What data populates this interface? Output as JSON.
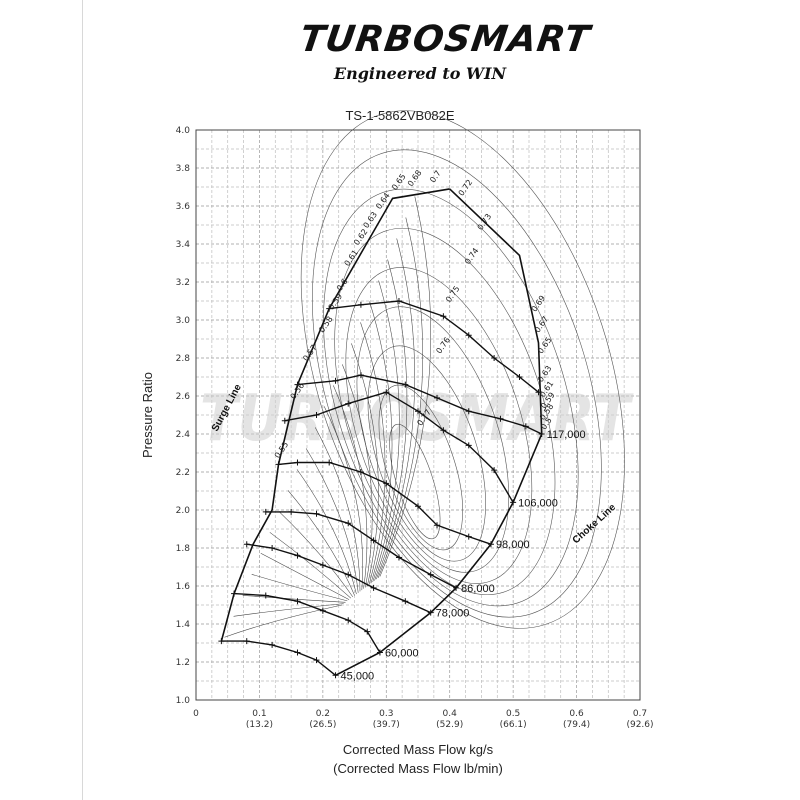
{
  "brand": {
    "logo": "TURBOSMART",
    "tagline": "Engineered to WIN",
    "watermark": "TURBOSMART"
  },
  "chart_data": {
    "type": "line",
    "title": "TS-1-5862VB082E",
    "xlabel": "Corrected Mass Flow kg/s",
    "xlabel2": "(Corrected Mass Flow lb/min)",
    "ylabel": "Pressure Ratio",
    "xlim": [
      0,
      0.7
    ],
    "ylim": [
      1.0,
      4.0
    ],
    "grid": true,
    "x_ticks": [
      {
        "v": 0,
        "label": "0",
        "label2": ""
      },
      {
        "v": 0.1,
        "label": "0.1",
        "label2": "(13.2)"
      },
      {
        "v": 0.2,
        "label": "0.2",
        "label2": "(26.5)"
      },
      {
        "v": 0.3,
        "label": "0.3",
        "label2": "(39.7)"
      },
      {
        "v": 0.4,
        "label": "0.4",
        "label2": "(52.9)"
      },
      {
        "v": 0.5,
        "label": "0.5",
        "label2": "(66.1)"
      },
      {
        "v": 0.6,
        "label": "0.6",
        "label2": "(79.4)"
      },
      {
        "v": 0.7,
        "label": "0.7",
        "label2": "(92.6)"
      }
    ],
    "y_ticks": [
      "1.0",
      "1.2",
      "1.4",
      "1.6",
      "1.8",
      "2.0",
      "2.2",
      "2.4",
      "2.6",
      "2.8",
      "3.0",
      "3.2",
      "3.4",
      "3.6",
      "3.8",
      "4.0"
    ],
    "surge_line": [
      [
        0.04,
        1.31
      ],
      [
        0.06,
        1.56
      ],
      [
        0.09,
        1.82
      ],
      [
        0.12,
        2.0
      ],
      [
        0.13,
        2.24
      ],
      [
        0.16,
        2.66
      ],
      [
        0.21,
        3.06
      ],
      [
        0.31,
        3.64
      ],
      [
        0.4,
        3.69
      ]
    ],
    "choke_line": [
      [
        0.4,
        3.69
      ],
      [
        0.51,
        3.34
      ],
      [
        0.54,
        2.88
      ],
      [
        0.545,
        2.4
      ],
      [
        0.5,
        2.04
      ],
      [
        0.465,
        1.82
      ],
      [
        0.41,
        1.59
      ],
      [
        0.37,
        1.46
      ],
      [
        0.29,
        1.25
      ],
      [
        0.22,
        1.13
      ]
    ],
    "speed_lines": [
      {
        "label": "45,000",
        "points": [
          [
            0.04,
            1.31
          ],
          [
            0.08,
            1.31
          ],
          [
            0.12,
            1.29
          ],
          [
            0.16,
            1.25
          ],
          [
            0.19,
            1.21
          ],
          [
            0.22,
            1.13
          ]
        ]
      },
      {
        "label": "60,000",
        "points": [
          [
            0.06,
            1.56
          ],
          [
            0.11,
            1.55
          ],
          [
            0.16,
            1.52
          ],
          [
            0.2,
            1.47
          ],
          [
            0.24,
            1.42
          ],
          [
            0.27,
            1.36
          ],
          [
            0.29,
            1.25
          ]
        ]
      },
      {
        "label": "78,000",
        "points": [
          [
            0.08,
            1.82
          ],
          [
            0.12,
            1.8
          ],
          [
            0.16,
            1.76
          ],
          [
            0.2,
            1.71
          ],
          [
            0.24,
            1.66
          ],
          [
            0.28,
            1.59
          ],
          [
            0.33,
            1.52
          ],
          [
            0.37,
            1.46
          ]
        ]
      },
      {
        "label": "86,000",
        "points": [
          [
            0.11,
            1.99
          ],
          [
            0.15,
            1.99
          ],
          [
            0.19,
            1.98
          ],
          [
            0.24,
            1.93
          ],
          [
            0.28,
            1.84
          ],
          [
            0.32,
            1.75
          ],
          [
            0.37,
            1.66
          ],
          [
            0.41,
            1.59
          ]
        ]
      },
      {
        "label": "98,000",
        "points": [
          [
            0.13,
            2.24
          ],
          [
            0.16,
            2.25
          ],
          [
            0.21,
            2.25
          ],
          [
            0.26,
            2.2
          ],
          [
            0.3,
            2.14
          ],
          [
            0.35,
            2.02
          ],
          [
            0.38,
            1.92
          ],
          [
            0.43,
            1.86
          ],
          [
            0.465,
            1.82
          ]
        ]
      },
      {
        "label": "106,000",
        "points": [
          [
            0.14,
            2.47
          ],
          [
            0.19,
            2.5
          ],
          [
            0.24,
            2.56
          ],
          [
            0.3,
            2.62
          ],
          [
            0.35,
            2.52
          ],
          [
            0.39,
            2.42
          ],
          [
            0.43,
            2.34
          ],
          [
            0.47,
            2.21
          ],
          [
            0.5,
            2.04
          ]
        ]
      },
      {
        "label": "117,000",
        "points": [
          [
            0.16,
            2.66
          ],
          [
            0.22,
            2.68
          ],
          [
            0.26,
            2.71
          ],
          [
            0.33,
            2.66
          ],
          [
            0.38,
            2.59
          ],
          [
            0.43,
            2.52
          ],
          [
            0.48,
            2.48
          ],
          [
            0.52,
            2.44
          ],
          [
            0.545,
            2.4
          ]
        ]
      },
      {
        "label": "",
        "points": [
          [
            0.21,
            3.06
          ],
          [
            0.26,
            3.08
          ],
          [
            0.32,
            3.1
          ],
          [
            0.39,
            3.02
          ],
          [
            0.43,
            2.92
          ],
          [
            0.47,
            2.8
          ],
          [
            0.51,
            2.7
          ],
          [
            0.54,
            2.62
          ]
        ]
      }
    ],
    "efficiency_labels": [
      {
        "v": "0.55",
        "x": 0.13,
        "y": 2.27
      },
      {
        "v": "0.56",
        "x": 0.155,
        "y": 2.58
      },
      {
        "v": "0.57",
        "x": 0.175,
        "y": 2.78
      },
      {
        "v": "0.58",
        "x": 0.2,
        "y": 2.93
      },
      {
        "v": "0.59",
        "x": 0.215,
        "y": 3.05
      },
      {
        "v": "0.6",
        "x": 0.228,
        "y": 3.15
      },
      {
        "v": "0.61",
        "x": 0.24,
        "y": 3.28
      },
      {
        "v": "0.62",
        "x": 0.255,
        "y": 3.39
      },
      {
        "v": "0.63",
        "x": 0.27,
        "y": 3.48
      },
      {
        "v": "0.64",
        "x": 0.29,
        "y": 3.58
      },
      {
        "v": "0.65",
        "x": 0.315,
        "y": 3.68
      },
      {
        "v": "0.68",
        "x": 0.34,
        "y": 3.7
      },
      {
        "v": "0.7",
        "x": 0.375,
        "y": 3.72
      },
      {
        "v": "0.72",
        "x": 0.42,
        "y": 3.65
      },
      {
        "v": "0.73",
        "x": 0.45,
        "y": 3.47
      },
      {
        "v": "0.74",
        "x": 0.43,
        "y": 3.29
      },
      {
        "v": "0.75",
        "x": 0.4,
        "y": 3.09
      },
      {
        "v": "0.76",
        "x": 0.385,
        "y": 2.82
      },
      {
        "v": "0.77",
        "x": 0.355,
        "y": 2.44
      },
      {
        "v": "0.69",
        "x": 0.535,
        "y": 3.04
      },
      {
        "v": "0.67",
        "x": 0.54,
        "y": 2.93
      },
      {
        "v": "0.65",
        "x": 0.545,
        "y": 2.82
      },
      {
        "v": "0.63",
        "x": 0.545,
        "y": 2.67
      },
      {
        "v": "0.61",
        "x": 0.548,
        "y": 2.59
      },
      {
        "v": "0.59",
        "x": 0.55,
        "y": 2.53
      },
      {
        "v": "0.58",
        "x": 0.548,
        "y": 2.47
      },
      {
        "v": "0.5",
        "x": 0.55,
        "y": 2.42
      }
    ],
    "annotations": {
      "surge": "Surge Line",
      "choke": "Choke Line"
    }
  }
}
